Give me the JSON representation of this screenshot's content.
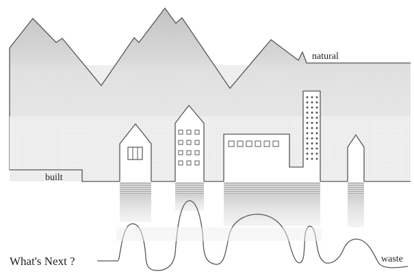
{
  "labels": {
    "natural": "natural",
    "built": "built",
    "waste": "waste",
    "whats_next": "What's Next ?"
  },
  "colors": {
    "stroke": "#555555",
    "mountain_fill": "#c9c9c9",
    "band_dark": "#d6d6d6",
    "band_mid": "#e2e2e2",
    "band_light": "#ececec",
    "background": "#ffffff"
  }
}
